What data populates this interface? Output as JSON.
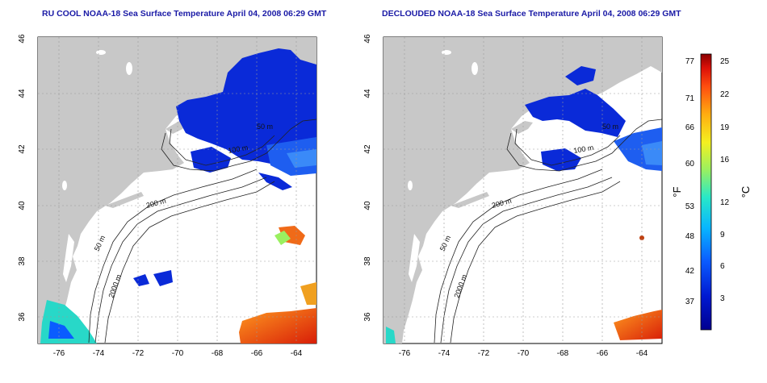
{
  "panels": [
    {
      "title": "RU COOL NOAA-18 Sea Surface Temperature April 04, 2008 06:29 GMT",
      "x_ticks": [
        "-76",
        "-74",
        "-72",
        "-70",
        "-68",
        "-66",
        "-64"
      ],
      "y_ticks": [
        "36",
        "38",
        "40",
        "42",
        "44",
        "46"
      ],
      "contour_labels": [
        "50 m",
        "100 m",
        "200 m",
        "2000 m",
        "50 m"
      ]
    },
    {
      "title": "DECLOUDED NOAA-18 Sea Surface Temperature April 04, 2008 06:29 GMT",
      "x_ticks": [
        "-76",
        "-74",
        "-72",
        "-70",
        "-68",
        "-66",
        "-64"
      ],
      "y_ticks": [
        "36",
        "38",
        "40",
        "42",
        "44",
        "46"
      ],
      "contour_labels": [
        "50 m",
        "100 m",
        "200 m",
        "2000 m",
        "50 m"
      ]
    }
  ],
  "colorbar": {
    "f_label": "°F",
    "c_label": "°C",
    "f_ticks": [
      "77",
      "71",
      "66",
      "60",
      "53",
      "48",
      "42",
      "37"
    ],
    "c_ticks": [
      "25",
      "22",
      "19",
      "16",
      "12",
      "9",
      "6",
      "3"
    ]
  },
  "colors": {
    "land": "#c8c8c8",
    "ocean": "#ffffff",
    "title": "#1a1aa6",
    "cold": "#0a2ad8",
    "warm": "#e23a10"
  }
}
